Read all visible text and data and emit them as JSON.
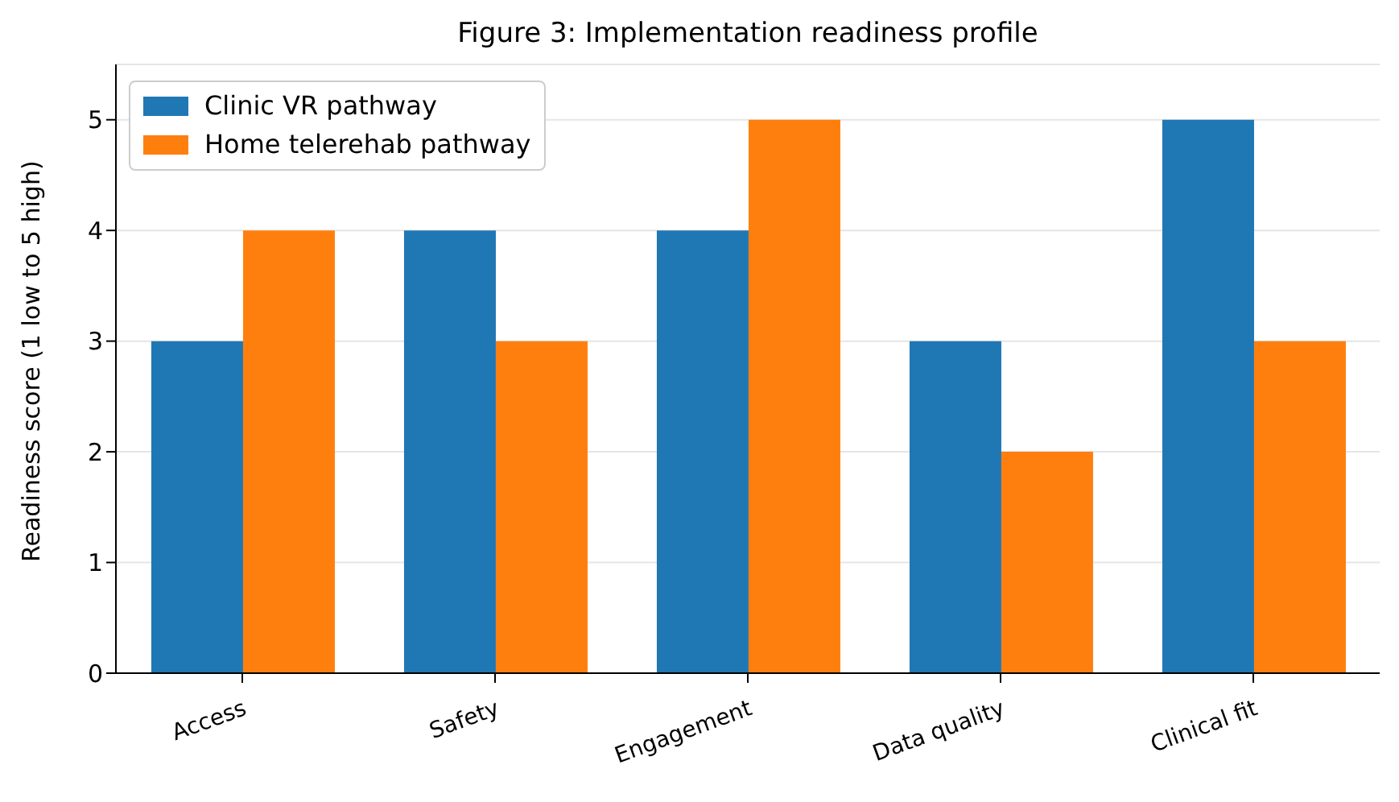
{
  "chart_data": {
    "type": "bar",
    "title": "Figure 3: Implementation readiness profile",
    "ylabel": "Readiness score (1 low to 5 high)",
    "categories": [
      "Access",
      "Safety",
      "Engagement",
      "Data quality",
      "Clinical fit"
    ],
    "series": [
      {
        "name": "Clinic VR pathway",
        "color": "#1f77b4",
        "values": [
          3,
          4,
          4,
          3,
          5
        ]
      },
      {
        "name": "Home telerehab pathway",
        "color": "#ff7f0e",
        "values": [
          4,
          3,
          5,
          2,
          3
        ]
      }
    ],
    "ylim": [
      0,
      5.5
    ],
    "yticks": [
      0,
      1,
      2,
      3,
      4,
      5
    ],
    "grid": "y",
    "legend": "top left"
  }
}
